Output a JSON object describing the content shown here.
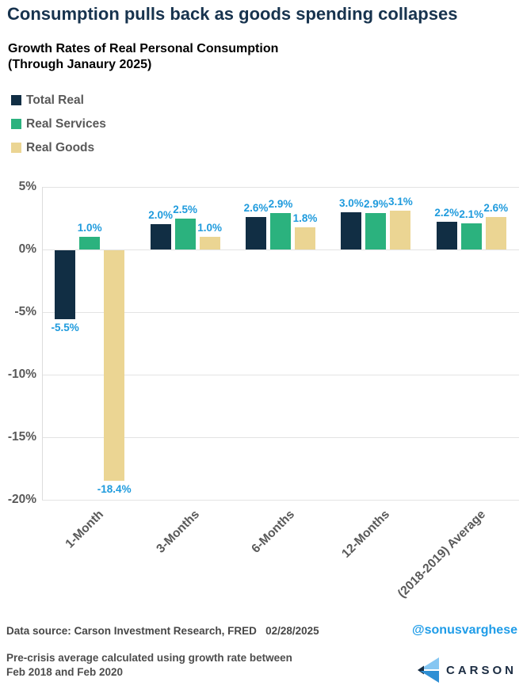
{
  "title": "Consumption pulls back as goods spending collapses",
  "subtitle_line1": "Growth Rates of Real Personal Consumption",
  "subtitle_line2": "(Through Janaury 2025)",
  "chart_data": {
    "type": "bar",
    "title": "Consumption pulls back as goods spending collapses",
    "subtitle": "Growth Rates of Real Personal Consumption (Through Janaury 2025)",
    "categories": [
      "1-Month",
      "3-Months",
      "6-Months",
      "12-Months",
      "(2018-2019) Average"
    ],
    "series": [
      {
        "name": "Total Real",
        "color": "#112e44",
        "values": [
          -5.5,
          2.0,
          2.6,
          3.0,
          2.2
        ],
        "labels": [
          "-5.5%",
          "2.0%",
          "2.6%",
          "3.0%",
          "2.2%"
        ]
      },
      {
        "name": "Real Services",
        "color": "#2bb27e",
        "values": [
          1.0,
          2.5,
          2.9,
          2.9,
          2.1
        ],
        "labels": [
          "1.0%",
          "2.5%",
          "2.9%",
          "2.9%",
          "2.1%"
        ]
      },
      {
        "name": "Real Goods",
        "color": "#ebd593",
        "values": [
          -18.4,
          1.0,
          1.8,
          3.1,
          2.6
        ],
        "labels": [
          "-18.4%",
          "1.0%",
          "1.8%",
          "3.1%",
          "2.6%"
        ]
      }
    ],
    "ylim": [
      -20,
      5
    ],
    "yticks": [
      {
        "value": 5,
        "label": "5%"
      },
      {
        "value": 0,
        "label": "0%"
      },
      {
        "value": -5,
        "label": "-5%"
      },
      {
        "value": -10,
        "label": "-10%"
      },
      {
        "value": -15,
        "label": "-15%"
      },
      {
        "value": -20,
        "label": "-20%"
      }
    ],
    "grid": true,
    "legend_position": "top-left",
    "value_label_color": "#1f9bdd",
    "axis_text_color": "#595959",
    "gridline_color": "#e3e3e3"
  },
  "footer": {
    "source_line": "Data source: Carson Investment Research, FRED   02/28/2025",
    "handle": "@sonusvarghese",
    "note_line1": "Pre-crisis average calculated using growth rate between",
    "note_line2": "Feb 2018 and Feb 2020",
    "logo_text": "CARSON"
  },
  "colors": {
    "title": "#17334e",
    "handle_blue": "#1e9ce8",
    "logo_light_blue": "#85c6f2",
    "logo_mid_blue": "#2f8fd4",
    "logo_dark_navy": "#152b42"
  }
}
